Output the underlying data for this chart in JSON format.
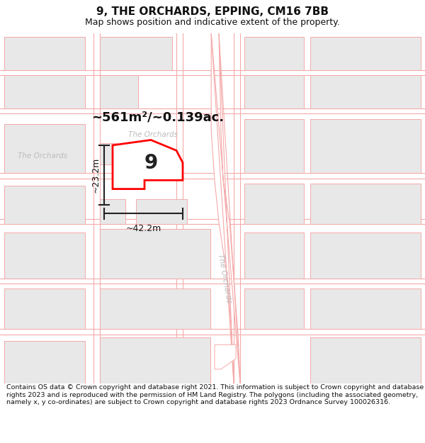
{
  "title": "9, THE ORCHARDS, EPPING, CM16 7BB",
  "subtitle": "Map shows position and indicative extent of the property.",
  "footer": "Contains OS data © Crown copyright and database right 2021. This information is subject to Crown copyright and database rights 2023 and is reproduced with the permission of HM Land Registry. The polygons (including the associated geometry, namely x, y co-ordinates) are subject to Crown copyright and database rights 2023 Ordnance Survey 100026316.",
  "area_text": "~561m²/~0.139ac.",
  "width_label": "~42.2m",
  "height_label": "~23.2m",
  "property_number": "9",
  "map_bg": "#ffffff",
  "building_color": "#e8e8e8",
  "road_line_color": "#f5aaaa",
  "boundary_color": "#ff0000",
  "background_color": "#ffffff",
  "title_fontsize": 11,
  "subtitle_fontsize": 9,
  "footer_fontsize": 6.8
}
